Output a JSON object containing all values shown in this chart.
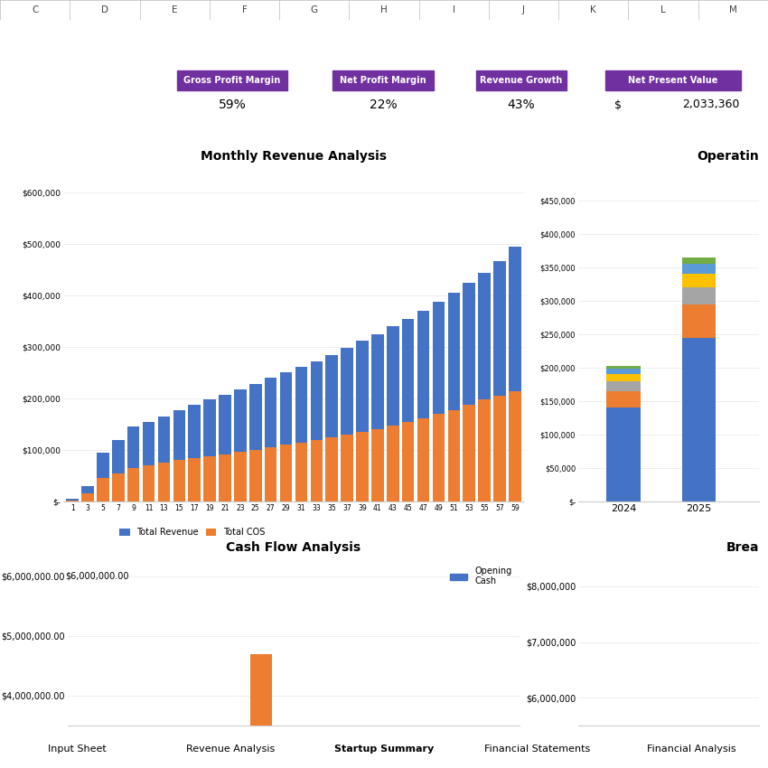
{
  "col_letters": [
    "C",
    "D",
    "E",
    "F",
    "G",
    "H",
    "I",
    "J",
    "K",
    "L",
    "M"
  ],
  "kpi_labels": [
    "Gross Profit Margin",
    "Net Profit Margin",
    "Revenue Growth",
    "Net Present Value"
  ],
  "kpi_box_color": "#7030a0",
  "kpi_values": [
    "59%",
    "22%",
    "43%"
  ],
  "kpi_npv_dollar": "$",
  "kpi_npv_value": "2,033,360",
  "monthly_title": "Monthly Revenue Analysis",
  "monthly_x": [
    1,
    3,
    5,
    7,
    9,
    11,
    13,
    15,
    17,
    19,
    21,
    23,
    25,
    27,
    29,
    31,
    33,
    35,
    37,
    39,
    41,
    43,
    45,
    47,
    49,
    51,
    53,
    55,
    57,
    59
  ],
  "monthly_revenue": [
    5000,
    30000,
    95000,
    120000,
    145000,
    155000,
    165000,
    178000,
    188000,
    198000,
    208000,
    218000,
    228000,
    240000,
    252000,
    262000,
    272000,
    285000,
    298000,
    312000,
    325000,
    340000,
    355000,
    370000,
    388000,
    405000,
    425000,
    445000,
    468000,
    495000
  ],
  "monthly_cos": [
    2000,
    15000,
    45000,
    55000,
    65000,
    70000,
    75000,
    80000,
    85000,
    88000,
    92000,
    96000,
    100000,
    105000,
    110000,
    115000,
    120000,
    125000,
    130000,
    135000,
    140000,
    148000,
    155000,
    162000,
    170000,
    178000,
    188000,
    198000,
    205000,
    215000
  ],
  "revenue_color": "#4472c4",
  "cos_color": "#ed7d31",
  "monthly_ytick_labels": [
    "$-",
    "$100,000",
    "$200,000",
    "$300,000",
    "$400,000",
    "$500,000",
    "$600,000"
  ],
  "operating_title": "Operatin",
  "operating_years": [
    "2024",
    "2025"
  ],
  "operating_segments_2024": [
    140000,
    25000,
    15000,
    10000,
    8000,
    5000
  ],
  "operating_segments_2025": [
    245000,
    50000,
    25000,
    20000,
    15000,
    10000
  ],
  "operating_colors": [
    "#4472c4",
    "#ed7d31",
    "#a5a5a5",
    "#ffc000",
    "#5b9bd5",
    "#70ad47"
  ],
  "operating_ytick_labels": [
    "$-",
    "$50,000",
    "$100,000",
    "$150,000",
    "$200,000",
    "$250,000",
    "$300,000",
    "$350,000",
    "$400,000",
    "$450,000"
  ],
  "cashflow_title": "Cash Flow Analysis",
  "cashflow_bar_color": "#ed7d31",
  "cashflow_legend_color": "#4472c4",
  "cashflow_ytick_labels": [
    "$4,000,000.00",
    "$5,000,000.00",
    "$6,000,000.00"
  ],
  "breakeven_title": "Brea",
  "breakeven_ytick_labels": [
    "$6,000,000",
    "$7,000,000",
    "$8,000,000"
  ],
  "tab_labels": [
    "Input Sheet",
    "Revenue Analysis",
    "Startup Summary",
    "Financial Statements",
    "Financial Analysis"
  ],
  "tab_active": "Startup Summary",
  "panel_border_color": "#5b9bd5",
  "white": "#ffffff",
  "light_gray": "#e8e8e8",
  "col_header_bg": "#d9d9d9",
  "main_bg": "#ffffff"
}
